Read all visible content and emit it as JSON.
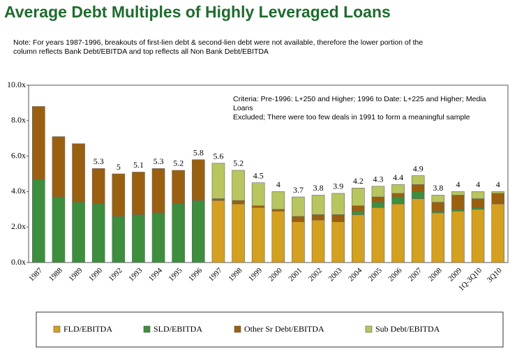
{
  "chart_data": {
    "type": "stacked_bar",
    "title": "Average Debt Multiples of Highly Leveraged Loans",
    "note": [
      "Note: For years 1987-1996, breakouts of first-lien debt & second-lien debt were not available, therefore the lower portion of the",
      "column reflects Bank Debt/EBITDA and top reflects all Non Bank Debt/EBITDA"
    ],
    "annotation": [
      "Criteria:  Pre-1996: L+250 and Higher; 1996 to Date: L+225 and Higher; Media",
      "Loans",
      "Excluded; There were too few deals in 1991 to form a meaningful sample"
    ],
    "categories": [
      "1987",
      "1988",
      "1989",
      "1990",
      "1992",
      "1993",
      "1994",
      "1995",
      "1996",
      "1997",
      "1998",
      "1999",
      "2000",
      "2001",
      "2002",
      "2003",
      "2004",
      "2005",
      "2006",
      "2007",
      "2008",
      "2009",
      "1Q-3Q10",
      "3Q10"
    ],
    "series": [
      {
        "name": "FLD/EBITDA",
        "color": "#d4a020",
        "values": [
          0,
          0,
          0,
          0,
          0,
          0,
          0,
          0,
          0,
          3.5,
          3.3,
          3.1,
          2.9,
          2.3,
          2.4,
          2.3,
          2.7,
          3.1,
          3.3,
          3.6,
          2.8,
          2.9,
          3.0,
          3.3
        ]
      },
      {
        "name": "SLD/EBITDA",
        "color": "#3d8f3d",
        "values": [
          4.7,
          3.7,
          3.4,
          3.3,
          2.6,
          2.7,
          2.8,
          3.3,
          3.5,
          0,
          0,
          0,
          0,
          0,
          0,
          0,
          0.2,
          0.3,
          0.4,
          0.4,
          0.1,
          0.1,
          0.1,
          0
        ]
      },
      {
        "name": "Other Sr Debt/EBITDA",
        "color": "#9a6010",
        "values": [
          4.1,
          3.4,
          3.3,
          2.0,
          2.4,
          2.4,
          2.5,
          1.9,
          2.3,
          0.1,
          0.2,
          0.1,
          0.1,
          0.3,
          0.3,
          0.4,
          0.3,
          0.3,
          0.2,
          0.4,
          0.5,
          0.8,
          0.5,
          0.6
        ]
      },
      {
        "name": "Sub Debt/EBITDA",
        "color": "#b9c55e",
        "values": [
          0,
          0,
          0,
          0,
          0,
          0,
          0,
          0,
          0,
          2.0,
          1.7,
          1.3,
          1.0,
          1.1,
          1.1,
          1.2,
          1.0,
          0.6,
          0.5,
          0.5,
          0.4,
          0.2,
          0.4,
          0.1
        ]
      }
    ],
    "totals": [
      null,
      null,
      null,
      5.3,
      5.0,
      5.1,
      5.3,
      5.2,
      5.8,
      5.6,
      5.2,
      4.5,
      4.0,
      3.7,
      3.8,
      3.9,
      4.2,
      4.3,
      4.4,
      4.9,
      3.8,
      4.0,
      4.0,
      4.0
    ],
    "ylim": [
      0,
      10
    ],
    "yticks": [
      {
        "value": 0,
        "label": "0.0x"
      },
      {
        "value": 2,
        "label": "2.0x"
      },
      {
        "value": 4,
        "label": "4.0x"
      },
      {
        "value": 6,
        "label": "6.0x"
      },
      {
        "value": 8,
        "label": "8.0x"
      },
      {
        "value": 10,
        "label": "10.0x"
      }
    ],
    "grid": false
  }
}
